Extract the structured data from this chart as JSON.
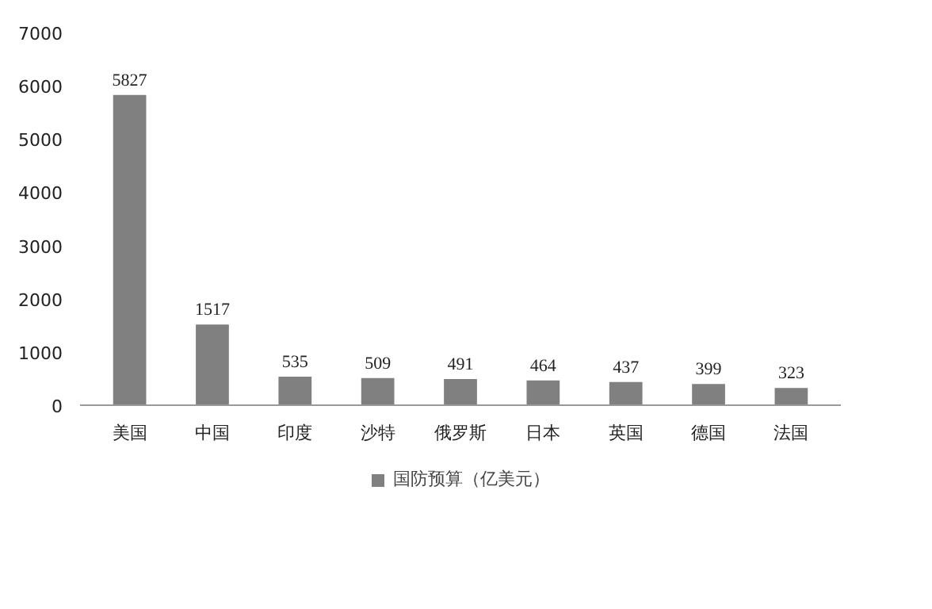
{
  "chart_data": {
    "type": "bar",
    "categories": [
      "美国",
      "中国",
      "印度",
      "沙特",
      "俄罗斯",
      "日本",
      "英国",
      "德国",
      "法国"
    ],
    "series": [
      {
        "name": "国防预算（亿美元）",
        "color": "#808080",
        "values": [
          5827,
          1517,
          535,
          509,
          491,
          464,
          437,
          399,
          323
        ]
      }
    ],
    "ylim": [
      0,
      7000
    ],
    "yticks": [
      0,
      1000,
      2000,
      3000,
      4000,
      5000,
      6000,
      7000
    ],
    "grid": false,
    "legend": "bottom",
    "data_labels": true
  }
}
